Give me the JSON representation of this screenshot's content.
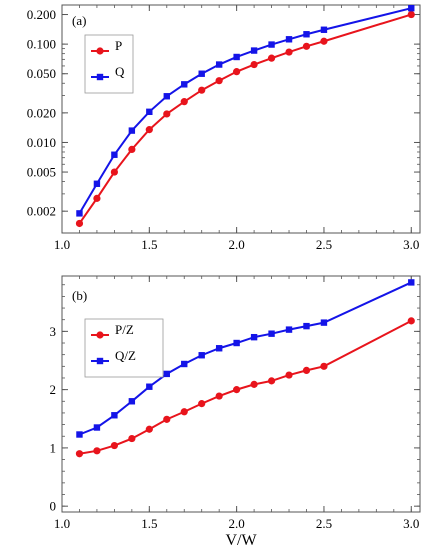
{
  "chart_data": [
    {
      "type": "line",
      "panel_label": "(a)",
      "y_scale": "log",
      "xlim": [
        1.0,
        3.05
      ],
      "ylim": [
        0.0012,
        0.25
      ],
      "x_ticks": [
        1.0,
        1.5,
        2.0,
        2.5,
        3.0
      ],
      "x_tick_labels": [
        "1.0",
        "1.5",
        "2.0",
        "2.5",
        "3.0"
      ],
      "y_ticks": [
        0.002,
        0.005,
        0.01,
        0.02,
        0.05,
        0.1,
        0.2
      ],
      "y_tick_labels": [
        "0.002",
        "0.005",
        "0.010",
        "0.020",
        "0.050",
        "0.100",
        "0.200"
      ],
      "legend_position": "top-left",
      "series": [
        {
          "name": "P",
          "color": "#e8141c",
          "marker": "circle",
          "x": [
            1.1,
            1.2,
            1.3,
            1.4,
            1.5,
            1.6,
            1.7,
            1.8,
            1.9,
            2.0,
            2.1,
            2.2,
            2.3,
            2.4,
            2.5,
            3.0
          ],
          "values": [
            0.0015,
            0.0027,
            0.005,
            0.0085,
            0.0135,
            0.0195,
            0.026,
            0.034,
            0.0425,
            0.0525,
            0.062,
            0.072,
            0.083,
            0.095,
            0.107,
            0.2
          ]
        },
        {
          "name": "Q",
          "color": "#1414e8",
          "marker": "square",
          "x": [
            1.1,
            1.2,
            1.3,
            1.4,
            1.5,
            1.6,
            1.7,
            1.8,
            1.9,
            2.0,
            2.1,
            2.2,
            2.3,
            2.4,
            2.5,
            3.0
          ],
          "values": [
            0.0019,
            0.0038,
            0.0075,
            0.0132,
            0.0205,
            0.0295,
            0.039,
            0.05,
            0.062,
            0.074,
            0.086,
            0.099,
            0.112,
            0.126,
            0.14,
            0.232
          ]
        }
      ]
    },
    {
      "type": "line",
      "panel_label": "(b)",
      "y_scale": "linear",
      "xlim": [
        1.0,
        3.05
      ],
      "ylim": [
        -0.1,
        3.95
      ],
      "xlabel": "V/W",
      "x_ticks": [
        1.0,
        1.5,
        2.0,
        2.5,
        3.0
      ],
      "x_tick_labels": [
        "1.0",
        "1.5",
        "2.0",
        "2.5",
        "3.0"
      ],
      "y_ticks": [
        0,
        1,
        2,
        3
      ],
      "y_tick_labels": [
        "0",
        "1",
        "2",
        "3"
      ],
      "legend_position": "top-left",
      "series": [
        {
          "name": "P/Z",
          "color": "#e8141c",
          "marker": "circle",
          "x": [
            1.1,
            1.2,
            1.3,
            1.4,
            1.5,
            1.6,
            1.7,
            1.8,
            1.9,
            2.0,
            2.1,
            2.2,
            2.3,
            2.4,
            2.5,
            3.0
          ],
          "values": [
            0.9,
            0.95,
            1.04,
            1.16,
            1.32,
            1.49,
            1.62,
            1.76,
            1.89,
            2.0,
            2.09,
            2.15,
            2.25,
            2.33,
            2.4,
            3.18
          ]
        },
        {
          "name": "Q/Z",
          "color": "#1414e8",
          "marker": "square",
          "x": [
            1.1,
            1.2,
            1.3,
            1.4,
            1.5,
            1.6,
            1.7,
            1.8,
            1.9,
            2.0,
            2.1,
            2.2,
            2.3,
            2.4,
            2.5,
            3.0
          ],
          "values": [
            1.23,
            1.35,
            1.56,
            1.8,
            2.05,
            2.27,
            2.44,
            2.59,
            2.71,
            2.8,
            2.9,
            2.96,
            3.03,
            3.09,
            3.15,
            3.84
          ]
        }
      ]
    }
  ]
}
